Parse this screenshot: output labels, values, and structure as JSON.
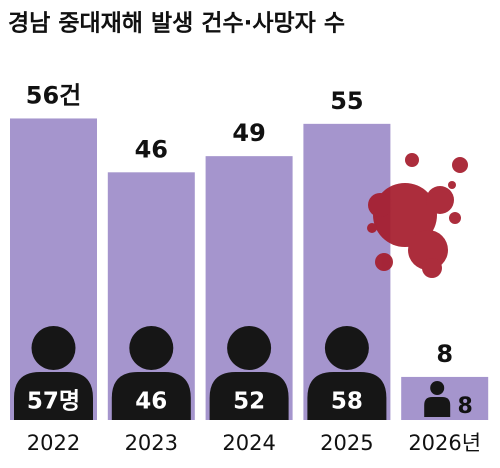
{
  "chart_data": {
    "type": "bar",
    "title": "경남 중대재해 발생 건수·사망자 수",
    "categories": [
      "2022",
      "2023",
      "2024",
      "2025",
      "2026년"
    ],
    "series": [
      {
        "color": "#a595cd",
        "values": [
          56,
          46,
          49,
          55,
          8
        ],
        "value_labels": [
          "56건",
          "46",
          "49",
          "55",
          "8"
        ]
      },
      {
        "color": "#161616",
        "values": [
          57,
          46,
          52,
          58,
          8
        ],
        "value_labels": [
          "57명",
          "46",
          "52",
          "58",
          "8"
        ]
      }
    ],
    "ylim": [
      0,
      78
    ]
  }
}
